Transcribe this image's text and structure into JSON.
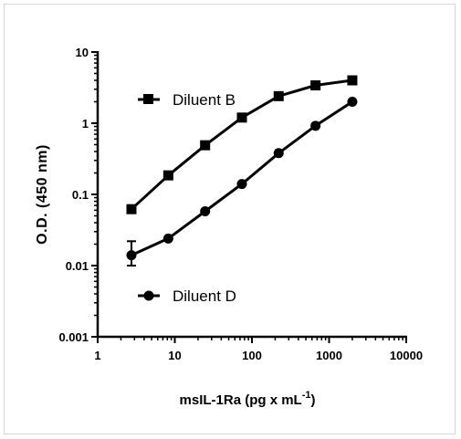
{
  "chart_data": {
    "type": "line",
    "xscale": "log",
    "yscale": "log",
    "xlim": [
      1,
      10000
    ],
    "ylim": [
      0.001,
      10
    ],
    "xticks": [
      "1",
      "10",
      "100",
      "1000",
      "10000"
    ],
    "yticks": [
      "0.001",
      "0.01",
      "0.1",
      "1",
      "10"
    ],
    "xlabel": "msIL-1Ra (pg x mL",
    "xlabel_sup": "-1",
    "xlabel_close": ")",
    "ylabel": "O.D. (450 nm)",
    "grid": false,
    "series": [
      {
        "name": "Diluent B",
        "marker": "square",
        "x": [
          2.74,
          8.23,
          24.7,
          74.1,
          222,
          667,
          2000
        ],
        "y": [
          0.062,
          0.185,
          0.49,
          1.2,
          2.4,
          3.4,
          4.0
        ]
      },
      {
        "name": "Diluent D",
        "marker": "circle",
        "x": [
          2.74,
          8.23,
          24.7,
          74.1,
          222,
          667,
          2000
        ],
        "y": [
          0.014,
          0.024,
          0.058,
          0.14,
          0.38,
          0.92,
          2.0
        ],
        "err_low": [
          0.01,
          null,
          null,
          null,
          null,
          null,
          null
        ],
        "err_high": [
          0.022,
          null,
          null,
          null,
          null,
          null,
          null
        ]
      }
    ]
  }
}
